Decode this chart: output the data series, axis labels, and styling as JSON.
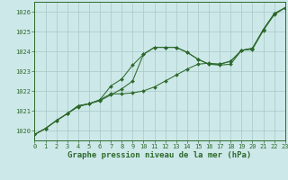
{
  "xlabel": "Graphe pression niveau de la mer (hPa)",
  "x": [
    0,
    1,
    2,
    3,
    4,
    5,
    6,
    7,
    8,
    9,
    10,
    11,
    12,
    13,
    14,
    15,
    16,
    17,
    18,
    19,
    20,
    21,
    22,
    23
  ],
  "series1": [
    1019.8,
    1020.1,
    1020.5,
    1020.85,
    1021.2,
    1021.35,
    1021.5,
    1021.8,
    1022.1,
    1022.5,
    1023.85,
    1024.2,
    1024.2,
    1024.2,
    1023.95,
    1023.6,
    1023.35,
    1023.3,
    1023.35,
    1024.05,
    1024.1,
    1025.05,
    1025.85,
    1026.2
  ],
  "series2": [
    1019.8,
    1020.1,
    1020.5,
    1020.85,
    1021.25,
    1021.35,
    1021.55,
    1021.85,
    1021.85,
    1021.9,
    1022.0,
    1022.2,
    1022.5,
    1022.8,
    1023.1,
    1023.35,
    1023.4,
    1023.35,
    1023.5,
    1024.05,
    1024.15,
    1025.1,
    1025.9,
    1026.2
  ],
  "series3": [
    1019.8,
    1020.1,
    1020.5,
    1020.85,
    1021.25,
    1021.35,
    1021.55,
    1022.25,
    1022.6,
    1023.3,
    1023.85,
    1024.2,
    1024.2,
    1024.2,
    1023.95,
    1023.6,
    1023.35,
    1023.35,
    1023.5,
    1024.05,
    1024.15,
    1025.1,
    1025.9,
    1026.2
  ],
  "line_color": "#2d6a2d",
  "bg_color": "#cde8e8",
  "grid_color": "#a8c8c8",
  "ylim_min": 1019.5,
  "ylim_max": 1026.5,
  "yticks": [
    1020,
    1021,
    1022,
    1023,
    1024,
    1025,
    1026
  ],
  "xticks": [
    0,
    1,
    2,
    3,
    4,
    5,
    6,
    7,
    8,
    9,
    10,
    11,
    12,
    13,
    14,
    15,
    16,
    17,
    18,
    19,
    20,
    21,
    22,
    23
  ],
  "tick_fontsize": 5.0,
  "xlabel_fontsize": 6.5,
  "marker": "D",
  "marker_size": 2.0,
  "line_width": 0.75
}
